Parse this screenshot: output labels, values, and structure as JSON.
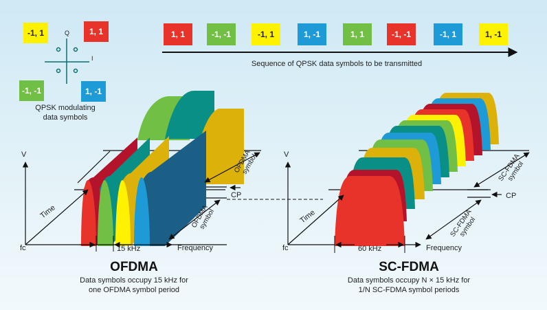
{
  "colors": {
    "red": "#e8332a",
    "green": "#71bf44",
    "yellow": "#fff200",
    "blue": "#1e9bd7",
    "crimson": "#b3132b",
    "teal": "#0a8f86",
    "navy": "#1b5e86",
    "gold": "#dcb10a"
  },
  "qpsk": {
    "axis_q": "Q",
    "axis_i": "I",
    "caption_line1": "QPSK modulating",
    "caption_line2": "data symbols",
    "quadrants": [
      {
        "label": "-1, 1",
        "color": "yellow"
      },
      {
        "label": "1, 1",
        "color": "red"
      },
      {
        "label": "-1, -1",
        "color": "green"
      },
      {
        "label": "1, -1",
        "color": "blue"
      }
    ]
  },
  "sequence": {
    "symbols": [
      {
        "label": "1, 1",
        "color": "red"
      },
      {
        "label": "-1, -1",
        "color": "green"
      },
      {
        "label": "-1, 1",
        "color": "yellow"
      },
      {
        "label": "1, -1",
        "color": "blue"
      },
      {
        "label": "1, 1",
        "color": "green"
      },
      {
        "label": "-1, -1",
        "color": "red"
      },
      {
        "label": "-1, 1",
        "color": "blue"
      },
      {
        "label": "1, -1",
        "color": "yellow"
      }
    ],
    "caption": "Sequence of QPSK data symbols to be transmitted"
  },
  "ofdma": {
    "axis_v": "V",
    "axis_time": "Time",
    "axis_fc": "fc",
    "axis_frequency": "Frequency",
    "cp": "CP",
    "symbol_label_1": "OFDMA",
    "symbol_label_2": "symbol",
    "bandwidth": "15 kHz",
    "title": "OFDMA",
    "desc_line1": "Data symbols occupy 15 kHz for",
    "desc_line2": "one OFDMA symbol period"
  },
  "scfdma": {
    "axis_v": "V",
    "axis_time": "Time",
    "axis_fc": "fc",
    "axis_frequency": "Frequency",
    "cp": "CP",
    "symbol_label_1": "SC-FDMA",
    "symbol_label_2": "symbol",
    "bandwidth": "60 kHz",
    "title": "SC-FDMA",
    "desc_line1": "Data symbols occupy N × 15 kHz for",
    "desc_line2": "1/N SC-FDMA symbol periods"
  }
}
